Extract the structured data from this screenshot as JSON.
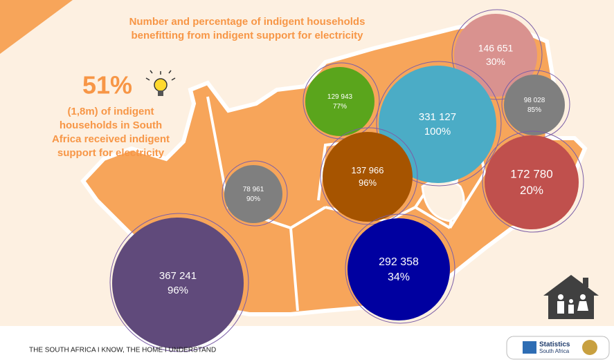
{
  "header": {
    "title_line1": "Number and percentage of indigent households",
    "title_line2": "benefitting from indigent support for electricity"
  },
  "highlight": {
    "percent": "51%",
    "text_lines": [
      "(1,8m) of indigent",
      "households in South",
      "Africa received indigent",
      "support for electricity"
    ]
  },
  "bubbles": [
    {
      "count": "146 651",
      "percent": "30%",
      "color": "#d9928f"
    },
    {
      "count": "98 028",
      "percent": "85%",
      "color": "#7f7f7f"
    },
    {
      "count": "129 943",
      "percent": "77%",
      "color": "#5aa51c"
    },
    {
      "count": "331 127",
      "percent": "100%",
      "color": "#4bacc6"
    },
    {
      "count": "172 780",
      "percent": "20%",
      "color": "#c0504d"
    },
    {
      "count": "137 966",
      "percent": "96%",
      "color": "#a65400"
    },
    {
      "count": "78 961",
      "percent": "90%",
      "color": "#7f7f7f"
    },
    {
      "count": "367 241",
      "percent": "96%",
      "color": "#604a7b"
    },
    {
      "count": "292 358",
      "percent": "34%",
      "color": "#0000a0"
    }
  ],
  "footer": {
    "slogan": "THE SOUTH AFRICA I KNOW, THE HOME I UNDERSTAND",
    "logo_line1": "Statistics",
    "logo_line2": "South Africa"
  }
}
